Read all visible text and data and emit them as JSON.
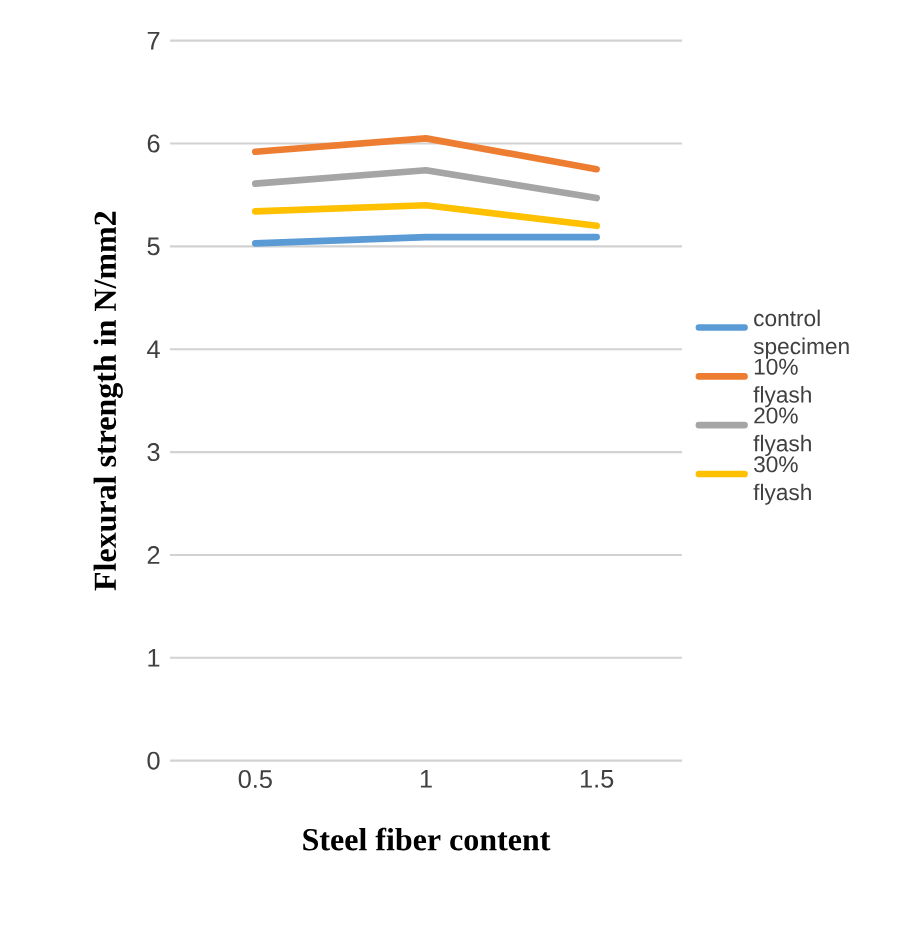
{
  "chart_data": {
    "type": "line",
    "xlabel": "Steel fiber content",
    "ylabel": "Flexural strength in N/mm2",
    "categories": [
      "0.5",
      "1",
      "1.5"
    ],
    "series": [
      {
        "name": "control specimen",
        "color": "#5b9bd5",
        "values": [
          5.03,
          5.09,
          5.09
        ]
      },
      {
        "name": "10% flyash",
        "color": "#ed7d31",
        "values": [
          5.92,
          6.05,
          5.75
        ]
      },
      {
        "name": "20% flyash",
        "color": "#a5a5a5",
        "values": [
          5.61,
          5.74,
          5.47
        ]
      },
      {
        "name": "30% flyash",
        "color": "#ffc000",
        "values": [
          5.34,
          5.4,
          5.2
        ]
      }
    ],
    "ylim": [
      0,
      7
    ],
    "yticks": [
      0,
      1,
      2,
      3,
      4,
      5,
      6,
      7
    ],
    "grid": "y",
    "legend": "right",
    "marker": "none",
    "line_style": "solid"
  }
}
